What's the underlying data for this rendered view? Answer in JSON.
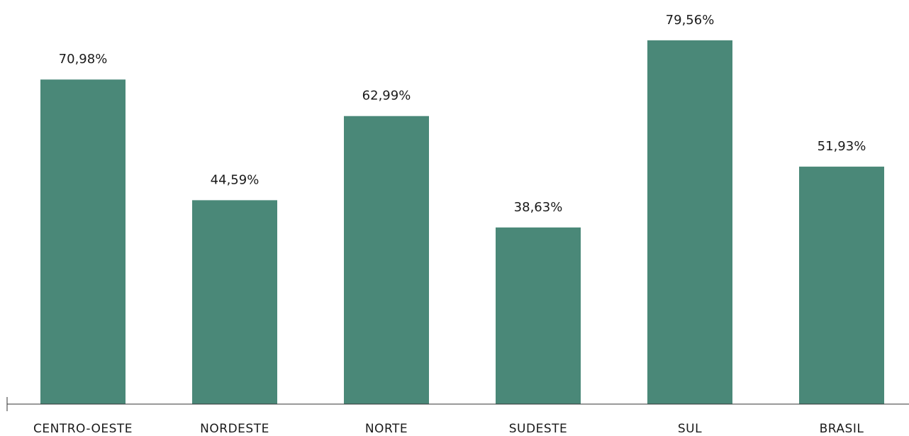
{
  "chart_data": {
    "type": "bar",
    "categories": [
      "CENTRO-OESTE",
      "NORDESTE",
      "NORTE",
      "SUDESTE",
      "SUL",
      "BRASIL"
    ],
    "values": [
      70.98,
      44.59,
      62.99,
      38.63,
      79.56,
      51.93
    ],
    "data_labels": [
      "70,98%",
      "44,59%",
      "62,99%",
      "38,63%",
      "79,56%",
      "51,93%"
    ],
    "title": "",
    "xlabel": "",
    "ylabel": "",
    "ylim": [
      0,
      100
    ],
    "grid": false,
    "legend": "none",
    "bar_color": "#4a8878",
    "axis_color": "#333333"
  }
}
